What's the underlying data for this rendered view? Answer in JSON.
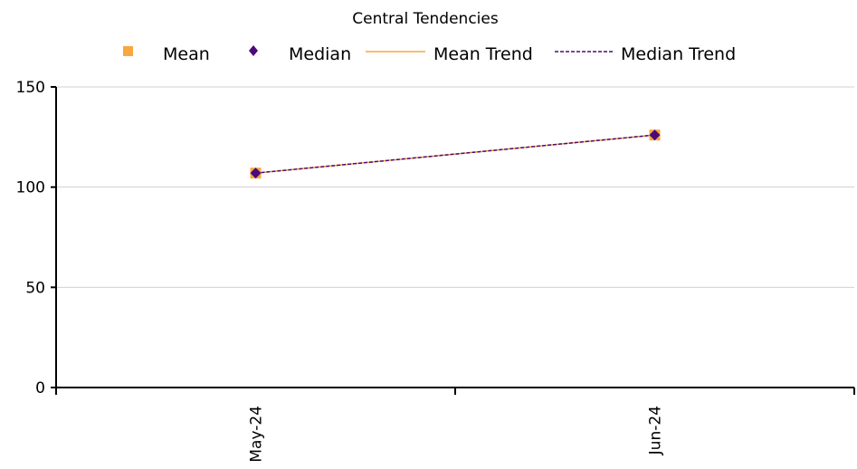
{
  "chart_data": {
    "type": "line",
    "title": "Central Tendencies",
    "xlabel": "",
    "ylabel": "",
    "categories": [
      "May-24",
      "Jun-24"
    ],
    "ylim": [
      0,
      150
    ],
    "yticks": [
      0,
      50,
      100,
      150
    ],
    "grid": true,
    "legend_position": "top",
    "series": [
      {
        "name": "Mean",
        "kind": "marker",
        "marker": "square",
        "color": "#F9A73E",
        "values": [
          107,
          126
        ]
      },
      {
        "name": "Median",
        "kind": "marker",
        "marker": "diamond",
        "color": "#4B0A7A",
        "values": [
          107,
          126
        ]
      },
      {
        "name": "Mean Trend",
        "kind": "line",
        "dash": "solid",
        "color": "#F9A73E",
        "values": [
          107,
          126
        ]
      },
      {
        "name": "Median Trend",
        "kind": "line",
        "dash": "dashed",
        "color": "#4B0A7A",
        "values": [
          107,
          126
        ]
      }
    ]
  }
}
